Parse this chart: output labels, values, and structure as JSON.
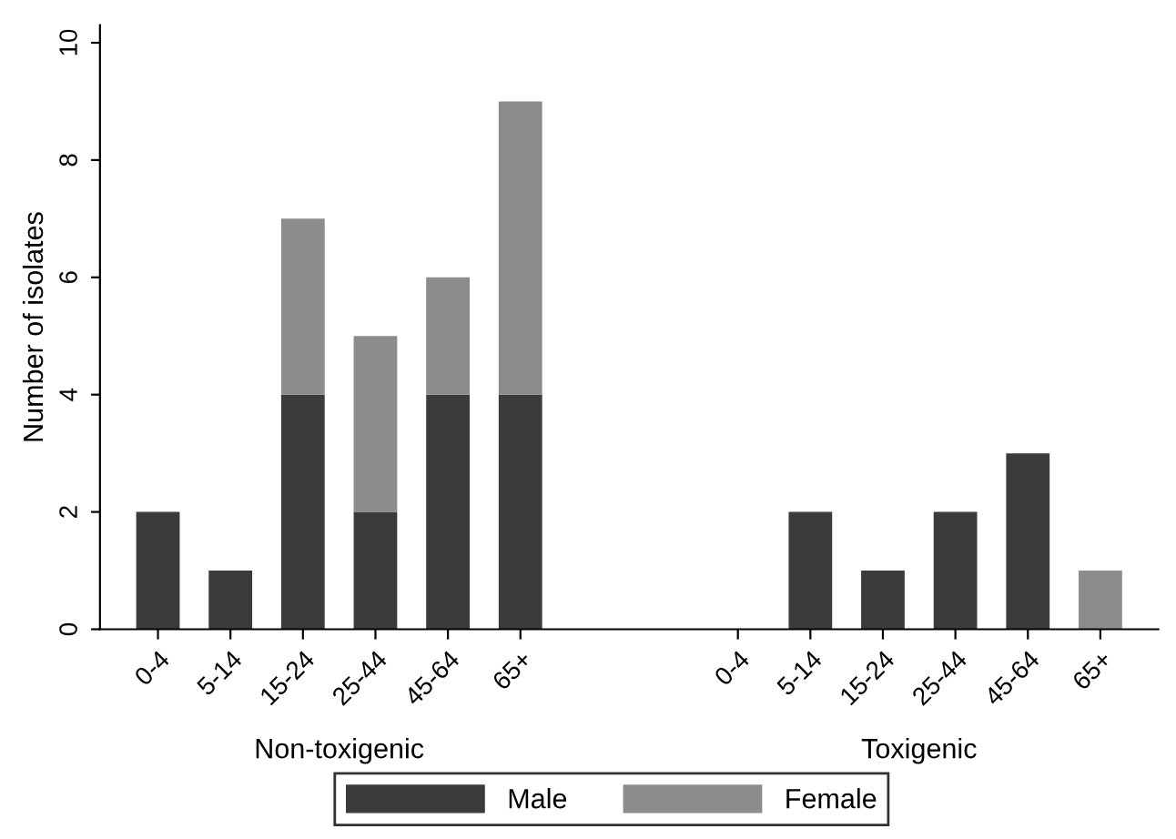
{
  "chart_data": {
    "type": "bar",
    "stacked": true,
    "ylabel": "Number of isolates",
    "categories": [
      "0-4",
      "5-14",
      "15-24",
      "25-44",
      "45-64",
      "65+",
      null,
      null,
      "0-4",
      "5-14",
      "15-24",
      "25-44",
      "45-64",
      "65+"
    ],
    "series": [
      {
        "name": "Male",
        "color": "#3b3b3b",
        "values": [
          2,
          1,
          4,
          2,
          4,
          4,
          null,
          null,
          0,
          2,
          1,
          2,
          3,
          0
        ]
      },
      {
        "name": "Female",
        "color": "#8c8c8c",
        "values": [
          0,
          0,
          3,
          3,
          2,
          5,
          null,
          null,
          0,
          0,
          0,
          0,
          0,
          1
        ]
      }
    ],
    "ylim": [
      0,
      10.3
    ],
    "yticks": [
      0,
      2,
      4,
      6,
      8,
      10
    ],
    "grid": false,
    "legend": "bottom",
    "annotations": [
      "Non-toxigenic",
      "Toxigenic"
    ]
  }
}
